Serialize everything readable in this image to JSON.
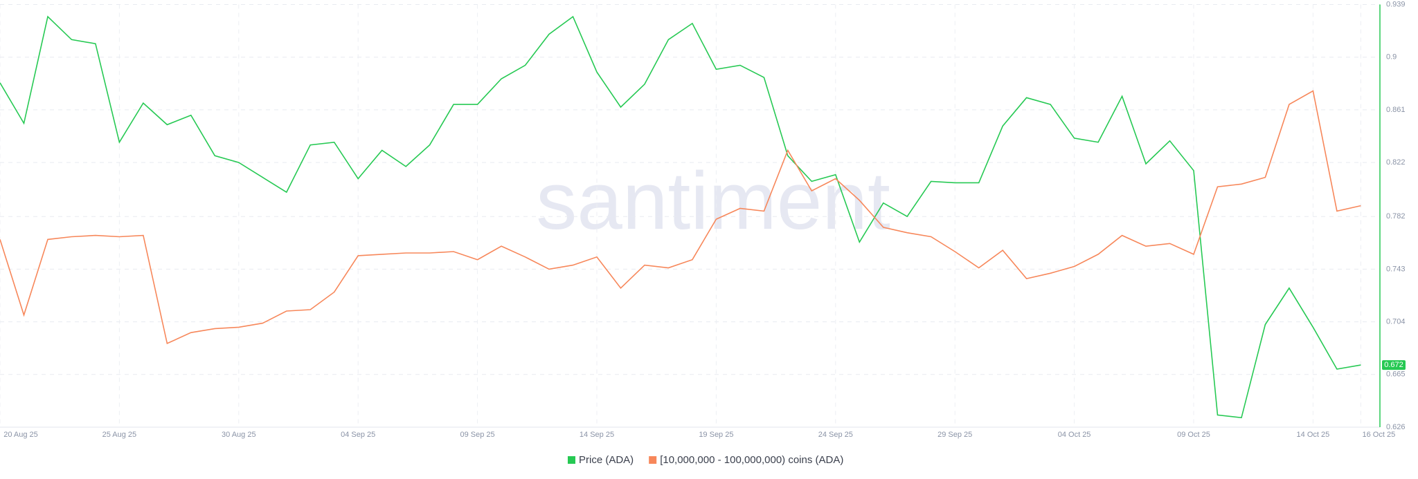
{
  "chart_data": {
    "type": "line",
    "watermark": "santiment",
    "categories": [
      "20 Aug 25",
      null,
      null,
      null,
      null,
      "25 Aug 25",
      null,
      null,
      null,
      null,
      "30 Aug 25",
      null,
      null,
      null,
      null,
      "04 Sep 25",
      null,
      null,
      null,
      null,
      "09 Sep 25",
      null,
      null,
      null,
      null,
      "14 Sep 25",
      null,
      null,
      null,
      null,
      "19 Sep 25",
      null,
      null,
      null,
      null,
      "24 Sep 25",
      null,
      null,
      null,
      null,
      "29 Sep 25",
      null,
      null,
      null,
      null,
      "04 Oct 25",
      null,
      null,
      null,
      null,
      "09 Oct 25",
      null,
      null,
      null,
      null,
      "14 Oct 25",
      null,
      "16 Oct 25"
    ],
    "series": [
      {
        "name": "Price (ADA)",
        "color": "#26c953",
        "values": [
          0.881,
          0.851,
          0.93,
          0.913,
          0.91,
          0.837,
          0.866,
          0.85,
          0.857,
          0.827,
          0.822,
          0.811,
          0.8,
          0.835,
          0.837,
          0.81,
          0.831,
          0.819,
          0.835,
          0.865,
          0.865,
          0.884,
          0.894,
          0.917,
          0.93,
          0.889,
          0.863,
          0.88,
          0.913,
          0.925,
          0.891,
          0.894,
          0.885,
          0.827,
          0.808,
          0.813,
          0.763,
          0.792,
          0.782,
          0.808,
          0.807,
          0.807,
          0.849,
          0.87,
          0.865,
          0.84,
          0.837,
          0.871,
          0.821,
          0.838,
          0.816,
          0.635,
          0.633,
          0.702,
          0.729,
          0.7,
          0.669,
          0.672
        ]
      },
      {
        "name": "[10,000,000 - 100,000,000) coins (ADA)",
        "color": "#f7875a",
        "values": [
          0.765,
          0.709,
          0.765,
          0.767,
          0.768,
          0.767,
          0.768,
          0.688,
          0.696,
          0.699,
          0.7,
          0.703,
          0.712,
          0.713,
          0.726,
          0.753,
          0.754,
          0.755,
          0.755,
          0.756,
          0.75,
          0.76,
          0.752,
          0.743,
          0.746,
          0.752,
          0.729,
          0.746,
          0.744,
          0.75,
          0.78,
          0.788,
          0.786,
          0.831,
          0.801,
          0.81,
          0.794,
          0.774,
          0.77,
          0.767,
          0.756,
          0.744,
          0.757,
          0.736,
          0.74,
          0.745,
          0.754,
          0.768,
          0.76,
          0.762,
          0.754,
          0.804,
          0.806,
          0.811,
          0.865,
          0.875,
          0.786,
          0.79
        ]
      }
    ],
    "ylim": [
      0.626,
      0.939
    ],
    "yticks": [
      0.626,
      0.665,
      0.704,
      0.743,
      0.782,
      0.822,
      0.861,
      0.9,
      0.939
    ],
    "grid": true
  }
}
